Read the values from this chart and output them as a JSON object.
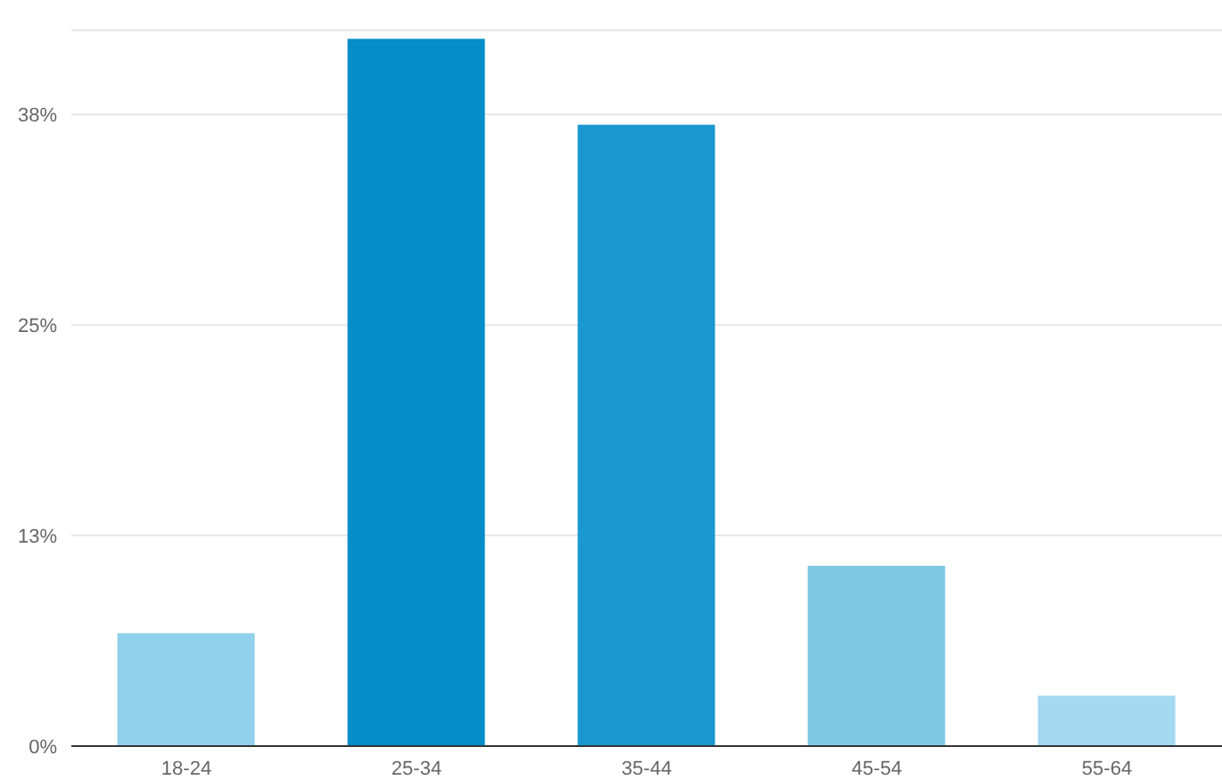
{
  "chart_data": {
    "type": "bar",
    "categories": [
      "18-24",
      "25-34",
      "35-44",
      "45-54",
      "55-64"
    ],
    "values": [
      6.7,
      42.0,
      36.9,
      10.7,
      3.0
    ],
    "colors": [
      "#91d1ec",
      "#058dc7",
      "#1a98d0",
      "#7ec8e6",
      "#a3d9f1"
    ],
    "ylim": [
      0,
      42.5
    ],
    "yticks": [
      {
        "value": 0,
        "label": "0%"
      },
      {
        "value": 12.5,
        "label": "13%"
      },
      {
        "value": 25,
        "label": "25%"
      },
      {
        "value": 37.5,
        "label": "38%"
      }
    ],
    "grid": "y"
  }
}
